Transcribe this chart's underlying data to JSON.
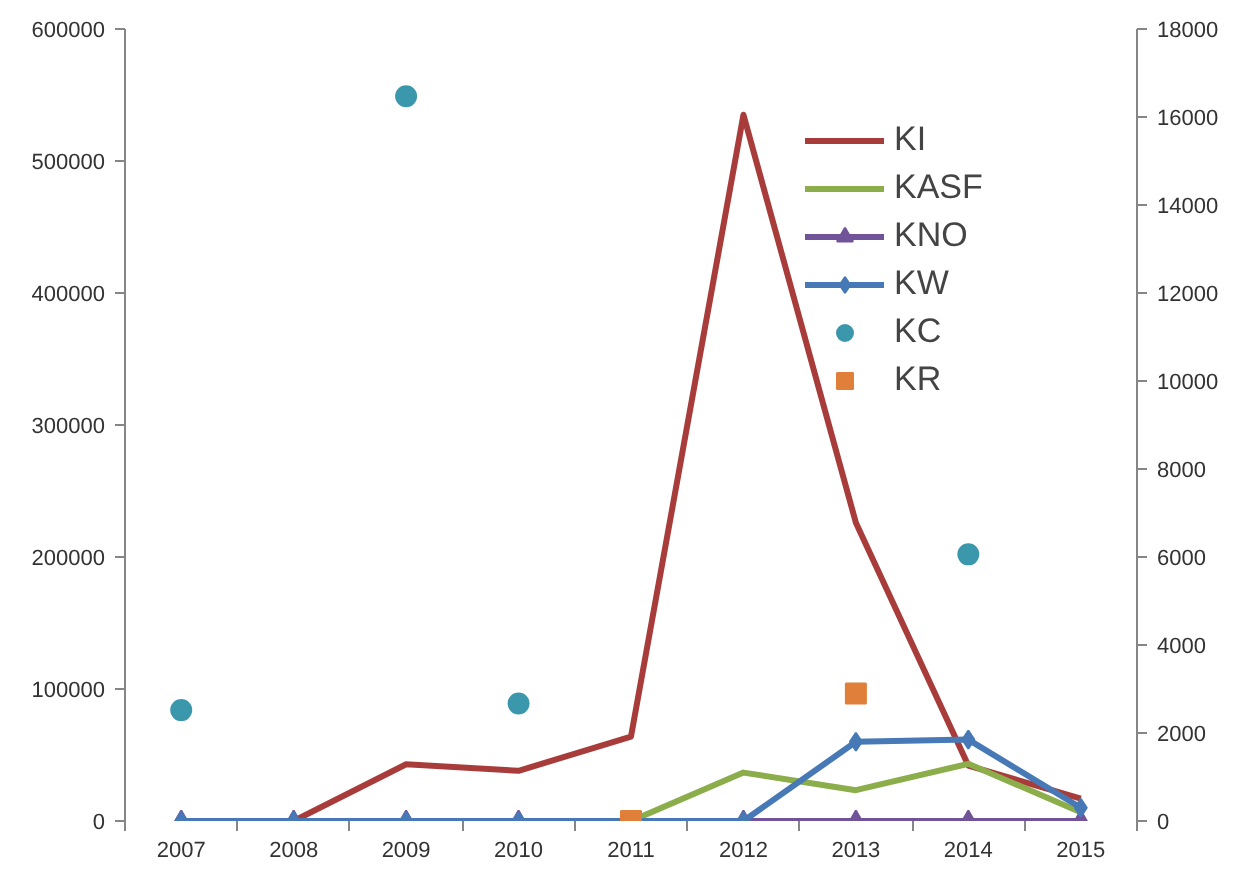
{
  "chart_data": {
    "type": "line",
    "categories": [
      "2007",
      "2008",
      "2009",
      "2010",
      "2011",
      "2012",
      "2013",
      "2014",
      "2015"
    ],
    "series": [
      {
        "name": "KI",
        "color": "#a83c3a",
        "marker": "none",
        "values": [
          null,
          0,
          43000,
          38000,
          64000,
          535000,
          226000,
          42000,
          17000
        ]
      },
      {
        "name": "KASF",
        "color": "#8bad4a",
        "marker": "none",
        "axis": "y2",
        "values": [
          null,
          null,
          null,
          null,
          0,
          1100,
          700,
          1300,
          200
        ]
      },
      {
        "name": "KNO",
        "color": "#71539a",
        "marker": "triangle",
        "axis": "y2",
        "values": [
          0,
          0,
          0,
          0,
          0,
          0,
          0,
          0,
          0
        ]
      },
      {
        "name": "KW",
        "color": "#4679b6",
        "marker": "diamond",
        "axis": "y2",
        "values": [
          0,
          0,
          0,
          0,
          0,
          0,
          1800,
          1850,
          300
        ]
      },
      {
        "name": "KC",
        "color": "#3b97ab",
        "type": "scatter",
        "marker": "circle",
        "values": [
          84000,
          null,
          549000,
          89000,
          null,
          null,
          null,
          202000,
          null
        ]
      },
      {
        "name": "KR",
        "color": "#e07f39",
        "type": "scatter",
        "marker": "square",
        "axis": "y2",
        "values": [
          null,
          null,
          null,
          null,
          0,
          null,
          2900,
          null,
          null
        ]
      }
    ],
    "ylim": [
      0,
      600000
    ],
    "yticks": [
      0,
      100000,
      200000,
      300000,
      400000,
      500000,
      600000
    ],
    "y2lim": [
      0,
      18000
    ],
    "y2ticks": [
      0,
      2000,
      4000,
      6000,
      8000,
      10000,
      12000,
      14000,
      16000,
      18000
    ],
    "grid": false,
    "legend": "top right"
  }
}
